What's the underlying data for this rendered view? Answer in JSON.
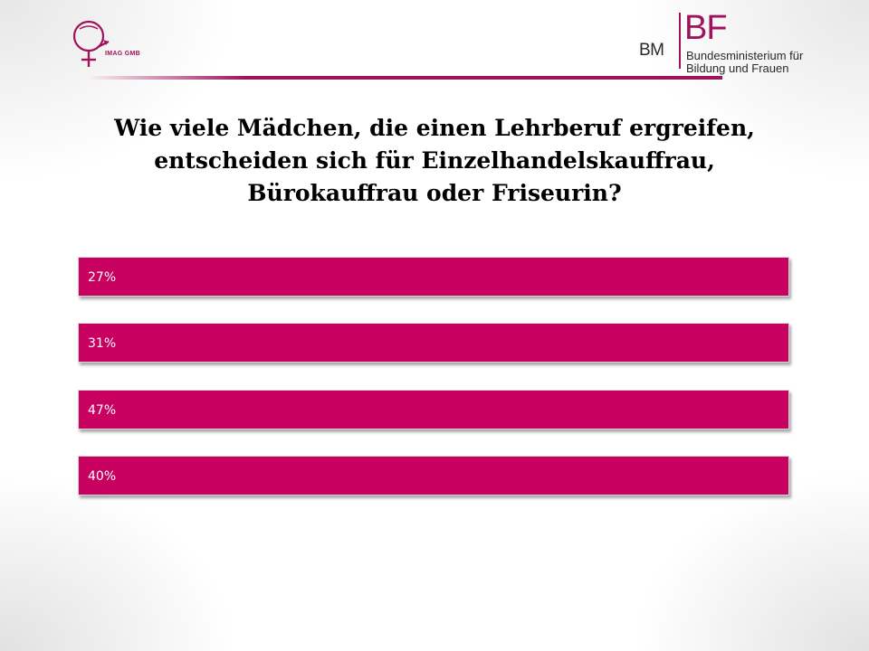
{
  "header": {
    "left_logo_text": "IMAG GMB",
    "right_logo": {
      "bm": "BM",
      "bf": "BF",
      "line1": "Bundesministerium für",
      "line2": "Bildung und Frauen"
    }
  },
  "question": {
    "line1": "Wie viele Mädchen, die einen Lehrberuf ergreifen,",
    "line2": "entscheiden sich für Einzelhandelskauffrau,",
    "line3": "Bürokauffrau oder Friseurin?"
  },
  "answers": [
    {
      "label": "27%"
    },
    {
      "label": "31%"
    },
    {
      "label": "47%"
    },
    {
      "label": "40%"
    }
  ],
  "colors": {
    "accent": "#c8005f",
    "brand": "#a0125a"
  }
}
